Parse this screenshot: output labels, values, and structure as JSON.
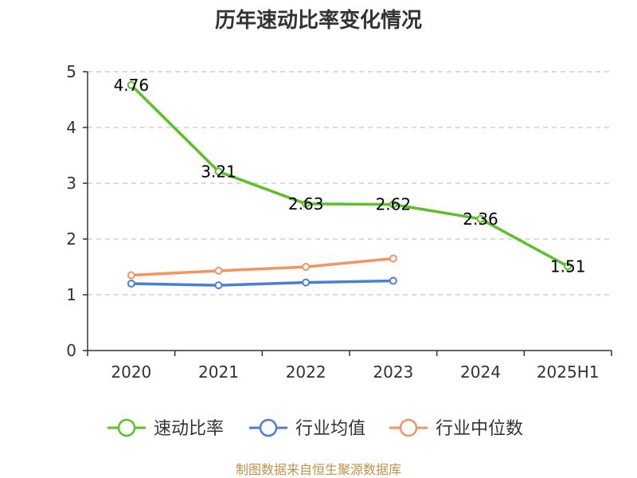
{
  "chart_data": {
    "type": "line",
    "title": "历年速动比率变化情况",
    "categories": [
      "2020",
      "2021",
      "2022",
      "2023",
      "2024",
      "2025H1"
    ],
    "ylim": [
      0,
      5
    ],
    "yticks": [
      0,
      1,
      2,
      3,
      4,
      5
    ],
    "grid": "horizontal-dashed",
    "legend_position": "bottom",
    "series": [
      {
        "name": "速动比率",
        "color": "#5cc02a",
        "values": [
          4.76,
          3.21,
          2.63,
          2.62,
          2.36,
          1.51
        ],
        "labels": [
          "4.76",
          "3.21",
          "2.63",
          "2.62",
          "2.36",
          "1.51"
        ]
      },
      {
        "name": "行业均值",
        "color": "#4a7fd9",
        "values": [
          1.2,
          1.17,
          1.22,
          1.25,
          null,
          null
        ]
      },
      {
        "name": "行业中位数",
        "color": "#f59362",
        "values": [
          1.35,
          1.43,
          1.5,
          1.65,
          null,
          null
        ]
      }
    ]
  },
  "footer": {
    "source": "制图数据来自恒生聚源数据库"
  }
}
